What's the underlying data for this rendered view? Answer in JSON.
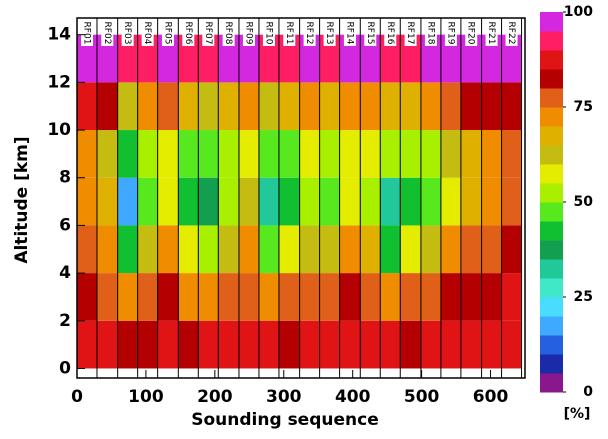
{
  "chart_data": {
    "type": "heatmap",
    "xlabel": "Sounding sequence",
    "ylabel": "Altitude [km]",
    "xlim": [
      0,
      650
    ],
    "ylim": [
      -0.4,
      14.7
    ],
    "xticks": [
      0,
      100,
      200,
      300,
      400,
      500,
      600
    ],
    "yticks": [
      0,
      2,
      4,
      6,
      8,
      10,
      12,
      14
    ],
    "categories": [
      "RF01",
      "RF02",
      "RF03",
      "RF04",
      "RF05",
      "RF06",
      "RF07",
      "RF08",
      "RF09",
      "RF10",
      "RF11",
      "RF12",
      "RF13",
      "RF14",
      "RF15",
      "RF16",
      "RF17",
      "RF18",
      "RF19",
      "RF20",
      "RF21",
      "RF22"
    ],
    "xbins": [
      0,
      29,
      59,
      88,
      117,
      147,
      176,
      205,
      235,
      264,
      293,
      323,
      352,
      381,
      411,
      440,
      469,
      499,
      528,
      557,
      587,
      616,
      645
    ],
    "ybins": [
      0,
      2,
      4,
      6,
      8,
      10,
      12,
      14
    ],
    "values": [
      [
        85,
        85,
        82,
        80,
        85,
        82,
        85,
        85,
        85,
        85,
        82,
        85,
        85,
        85,
        85,
        85,
        82,
        85,
        85,
        85,
        85,
        85
      ],
      [
        82,
        78,
        70,
        75,
        80,
        72,
        70,
        75,
        78,
        72,
        75,
        78,
        75,
        80,
        78,
        72,
        75,
        78,
        80,
        80,
        82,
        85
      ],
      [
        78,
        70,
        40,
        60,
        70,
        55,
        50,
        62,
        70,
        45,
        55,
        62,
        60,
        70,
        65,
        40,
        55,
        60,
        70,
        75,
        78,
        80
      ],
      [
        70,
        65,
        15,
        45,
        55,
        40,
        35,
        50,
        60,
        30,
        40,
        50,
        45,
        55,
        50,
        30,
        40,
        45,
        55,
        65,
        70,
        75
      ],
      [
        72,
        62,
        40,
        50,
        55,
        48,
        45,
        50,
        55,
        45,
        48,
        55,
        50,
        58,
        55,
        50,
        52,
        50,
        60,
        65,
        72,
        75
      ],
      [
        85,
        82,
        60,
        70,
        75,
        65,
        62,
        68,
        72,
        60,
        65,
        70,
        68,
        72,
        70,
        65,
        68,
        70,
        75,
        80,
        82,
        82
      ],
      [
        95,
        95,
        92,
        92,
        95,
        92,
        92,
        95,
        95,
        92,
        92,
        95,
        92,
        95,
        95,
        92,
        92,
        95,
        95,
        95,
        95,
        95
      ]
    ],
    "colorbar": {
      "lim": [
        0,
        100
      ],
      "ticks": [
        0,
        25,
        50,
        75,
        100
      ],
      "label": "[%]",
      "colors": [
        "#88188c",
        "#1a2aa8",
        "#2460e0",
        "#3fa8ff",
        "#48dcff",
        "#40e8c8",
        "#20c89a",
        "#12a050",
        "#10c030",
        "#58e81e",
        "#a8f000",
        "#e4ec00",
        "#c4bc10",
        "#e0b000",
        "#f08c00",
        "#e0601a",
        "#b40000",
        "#e01414",
        "#ff1e64",
        "#d428e0"
      ]
    }
  }
}
